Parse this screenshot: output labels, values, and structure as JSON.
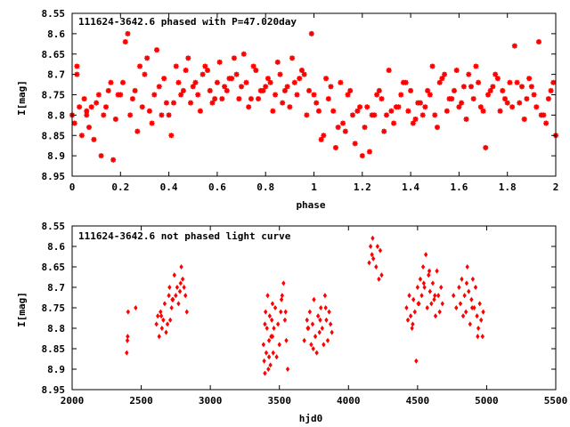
{
  "chart_data": [
    {
      "type": "scatter",
      "title": "111624-3642.6 phased with P=47.020day",
      "xlabel": "phase",
      "ylabel": "I[mag]",
      "xlim": [
        0,
        2
      ],
      "ylim": [
        8.95,
        8.55
      ],
      "y_inverted": true,
      "grid": false,
      "marker_color": "#ff0000",
      "xticks": [
        "0",
        "0.2",
        "0.4",
        "0.6",
        "0.8",
        "1",
        "1.2",
        "1.4",
        "1.6",
        "1.8",
        "2"
      ],
      "yticks": [
        "8.55",
        "8.6",
        "8.65",
        "8.7",
        "8.75",
        "8.8",
        "8.85",
        "8.9",
        "8.95"
      ],
      "series": [
        {
          "x": [
            0.0,
            0.01,
            0.02,
            0.03,
            0.04,
            0.05,
            0.06,
            0.07,
            0.08,
            0.1,
            0.12,
            0.14,
            0.16,
            0.18,
            0.2,
            0.22,
            0.24,
            0.25,
            0.26,
            0.28,
            0.3,
            0.32,
            0.34,
            0.36,
            0.38,
            0.4,
            0.42,
            0.44,
            0.46,
            0.48,
            0.5,
            0.52,
            0.54,
            0.56,
            0.58,
            0.6,
            0.62,
            0.64,
            0.66,
            0.68,
            0.7,
            0.72,
            0.74,
            0.76,
            0.78,
            0.8,
            0.82,
            0.84,
            0.86,
            0.88,
            0.9,
            0.92,
            0.94,
            0.96,
            0.98,
            1.0,
            1.02,
            1.04,
            1.06,
            1.08,
            1.1,
            1.12,
            1.14,
            1.16,
            1.18,
            1.2,
            1.22,
            1.24,
            1.26,
            1.28,
            1.3,
            1.32,
            1.34,
            1.36,
            1.38,
            1.4,
            1.42,
            1.44,
            1.46,
            1.48,
            1.5,
            1.52,
            1.54,
            1.56,
            1.58,
            1.6,
            1.62,
            1.64,
            1.66,
            1.68,
            1.7,
            1.72,
            1.74,
            1.76,
            1.78,
            1.8,
            1.82,
            1.84,
            1.86,
            1.88,
            1.9,
            1.92,
            1.94,
            1.96,
            1.98,
            2.0,
            0.02,
            0.06,
            0.09,
            0.11,
            0.13,
            0.15,
            0.17,
            0.19,
            0.21,
            0.23,
            0.27,
            0.29,
            0.31,
            0.33,
            0.35,
            0.37,
            0.39,
            0.41,
            0.43,
            0.45,
            0.47,
            0.49,
            0.51,
            0.53,
            0.55,
            0.57,
            0.59,
            0.61,
            0.63,
            0.65,
            0.67,
            0.69,
            0.71,
            0.73,
            0.75,
            0.77,
            0.79,
            0.81,
            0.83,
            0.85,
            0.87,
            0.89,
            0.91,
            0.93,
            0.95,
            0.97,
            0.99,
            1.01,
            1.03,
            1.05,
            1.07,
            1.09,
            1.11,
            1.13,
            1.15,
            1.17,
            1.19,
            1.21,
            1.23,
            1.25,
            1.27,
            1.29,
            1.31,
            1.33,
            1.35,
            1.37,
            1.39,
            1.41,
            1.43,
            1.45,
            1.47,
            1.49,
            1.51,
            1.53,
            1.55,
            1.57,
            1.59,
            1.61,
            1.63,
            1.65,
            1.67,
            1.69,
            1.71,
            1.73,
            1.75,
            1.77,
            1.79,
            1.81,
            1.83,
            1.85,
            1.87,
            1.89,
            1.91,
            1.93,
            1.95,
            1.97,
            1.99
          ],
          "y": [
            8.8,
            8.82,
            8.7,
            8.78,
            8.85,
            8.76,
            8.8,
            8.83,
            8.78,
            8.77,
            8.9,
            8.78,
            8.72,
            8.81,
            8.75,
            8.62,
            8.8,
            8.76,
            8.74,
            8.68,
            8.7,
            8.79,
            8.75,
            8.73,
            8.71,
            8.8,
            8.77,
            8.72,
            8.74,
            8.66,
            8.73,
            8.75,
            8.7,
            8.69,
            8.77,
            8.72,
            8.76,
            8.74,
            8.71,
            8.7,
            8.73,
            8.72,
            8.76,
            8.69,
            8.74,
            8.73,
            8.72,
            8.75,
            8.7,
            8.74,
            8.78,
            8.72,
            8.71,
            8.7,
            8.74,
            8.75,
            8.79,
            8.85,
            8.76,
            8.79,
            8.83,
            8.82,
            8.75,
            8.8,
            8.79,
            8.9,
            8.78,
            8.8,
            8.75,
            8.76,
            8.8,
            8.79,
            8.78,
            8.75,
            8.72,
            8.74,
            8.81,
            8.77,
            8.78,
            8.75,
            8.8,
            8.72,
            8.7,
            8.76,
            8.74,
            8.78,
            8.73,
            8.7,
            8.76,
            8.72,
            8.79,
            8.75,
            8.73,
            8.71,
            8.74,
            8.77,
            8.78,
            8.72,
            8.73,
            8.76,
            8.73,
            8.78,
            8.8,
            8.82,
            8.74,
            8.85,
            8.68,
            8.79,
            8.86,
            8.75,
            8.8,
            8.74,
            8.91,
            8.75,
            8.72,
            8.6,
            8.84,
            8.78,
            8.66,
            8.82,
            8.64,
            8.8,
            8.77,
            8.85,
            8.68,
            8.75,
            8.69,
            8.77,
            8.72,
            8.79,
            8.68,
            8.74,
            8.76,
            8.67,
            8.73,
            8.71,
            8.66,
            8.76,
            8.65,
            8.78,
            8.68,
            8.76,
            8.74,
            8.71,
            8.79,
            8.67,
            8.77,
            8.73,
            8.66,
            8.75,
            8.69,
            8.8,
            8.6,
            8.77,
            8.86,
            8.71,
            8.73,
            8.88,
            8.72,
            8.84,
            8.74,
            8.87,
            8.78,
            8.83,
            8.89,
            8.8,
            8.74,
            8.84,
            8.69,
            8.82,
            8.78,
            8.72,
            8.79,
            8.82,
            8.77,
            8.8,
            8.74,
            8.68,
            8.83,
            8.71,
            8.79,
            8.76,
            8.69,
            8.77,
            8.81,
            8.73,
            8.68,
            8.78,
            8.88,
            8.74,
            8.7,
            8.79,
            8.76,
            8.72,
            8.63,
            8.77,
            8.81,
            8.71,
            8.75,
            8.62,
            8.8,
            8.76,
            8.72
          ]
        }
      ]
    },
    {
      "type": "scatter",
      "title": "111624-3642.6 not phased light curve",
      "xlabel": "hjd0",
      "ylabel": "I[mag]",
      "xlim": [
        2000,
        5500
      ],
      "ylim": [
        8.95,
        8.55
      ],
      "y_inverted": true,
      "grid": false,
      "marker_color": "#ff0000",
      "xticks": [
        "2000",
        "2500",
        "3000",
        "3500",
        "4000",
        "4500",
        "5000",
        "5500"
      ],
      "yticks": [
        "8.55",
        "8.6",
        "8.65",
        "8.7",
        "8.75",
        "8.8",
        "8.85",
        "8.9",
        "8.95"
      ],
      "series": [
        {
          "x": [
            2395,
            2400,
            2402,
            2405,
            2460,
            2610,
            2620,
            2630,
            2640,
            2650,
            2660,
            2670,
            2680,
            2690,
            2700,
            2705,
            2710,
            2720,
            2730,
            2740,
            2750,
            2760,
            2770,
            2780,
            2790,
            2800,
            2810,
            2820,
            2830,
            3385,
            3390,
            3395,
            3400,
            3405,
            3410,
            3415,
            3420,
            3425,
            3430,
            3435,
            3440,
            3445,
            3450,
            3455,
            3460,
            3470,
            3480,
            3490,
            3500,
            3510,
            3520,
            3530,
            3540,
            3550,
            3560,
            3680,
            3700,
            3710,
            3720,
            3730,
            3740,
            3750,
            3760,
            3770,
            3780,
            3790,
            3800,
            3810,
            3820,
            3830,
            3840,
            3850,
            3860,
            3870,
            3880,
            4150,
            4160,
            4170,
            4175,
            4180,
            4200,
            4210,
            4220,
            4230,
            4240,
            4420,
            4430,
            4440,
            4450,
            4460,
            4470,
            4480,
            4490,
            4500,
            4510,
            4520,
            4530,
            4540,
            4550,
            4560,
            4570,
            4580,
            4590,
            4600,
            4610,
            4620,
            4630,
            4640,
            4650,
            4660,
            4670,
            4680,
            4760,
            4780,
            4800,
            4810,
            4820,
            4830,
            4840,
            4850,
            4860,
            4870,
            4880,
            4890,
            4900,
            4910,
            4920,
            4930,
            4940,
            4950,
            4960,
            4970,
            4975,
            3395,
            3425,
            3450,
            3515,
            3545,
            3705,
            3745,
            3795,
            3835,
            4465,
            4505,
            4545,
            4585,
            4625,
            4855,
            4895,
            4935,
            2645,
            2725,
            2785
          ],
          "y": [
            8.86,
            8.83,
            8.82,
            8.76,
            8.75,
            8.79,
            8.77,
            8.82,
            8.76,
            8.8,
            8.78,
            8.74,
            8.81,
            8.79,
            8.72,
            8.7,
            8.78,
            8.75,
            8.73,
            8.67,
            8.72,
            8.7,
            8.74,
            8.71,
            8.65,
            8.68,
            8.7,
            8.72,
            8.76,
            8.84,
            8.88,
            8.91,
            8.76,
            8.86,
            8.8,
            8.72,
            8.9,
            8.83,
            8.77,
            8.89,
            8.82,
            8.78,
            8.74,
            8.86,
            8.8,
            8.75,
            8.87,
            8.79,
            8.84,
            8.76,
            8.72,
            8.69,
            8.78,
            8.83,
            8.9,
            8.83,
            8.78,
            8.8,
            8.76,
            8.84,
            8.79,
            8.73,
            8.82,
            8.86,
            8.77,
            8.81,
            8.75,
            8.8,
            8.84,
            8.72,
            8.78,
            8.83,
            8.76,
            8.79,
            8.81,
            8.64,
            8.6,
            8.62,
            8.58,
            8.63,
            8.65,
            8.6,
            8.68,
            8.61,
            8.67,
            8.75,
            8.78,
            8.72,
            8.77,
            8.8,
            8.73,
            8.76,
            8.88,
            8.7,
            8.74,
            8.68,
            8.72,
            8.65,
            8.7,
            8.62,
            8.75,
            8.67,
            8.71,
            8.74,
            8.69,
            8.73,
            8.77,
            8.66,
            8.72,
            8.76,
            8.7,
            8.74,
            8.72,
            8.75,
            8.7,
            8.74,
            8.68,
            8.77,
            8.72,
            8.76,
            8.65,
            8.71,
            8.79,
            8.73,
            8.68,
            8.75,
            8.7,
            8.77,
            8.8,
            8.74,
            8.78,
            8.82,
            8.76,
            8.79,
            8.87,
            8.82,
            8.73,
            8.76,
            8.8,
            8.85,
            8.78,
            8.75,
            8.79,
            8.74,
            8.69,
            8.66,
            8.72,
            8.69,
            8.75,
            8.82,
            8.77,
            8.73,
            8.69
          ]
        }
      ]
    }
  ]
}
